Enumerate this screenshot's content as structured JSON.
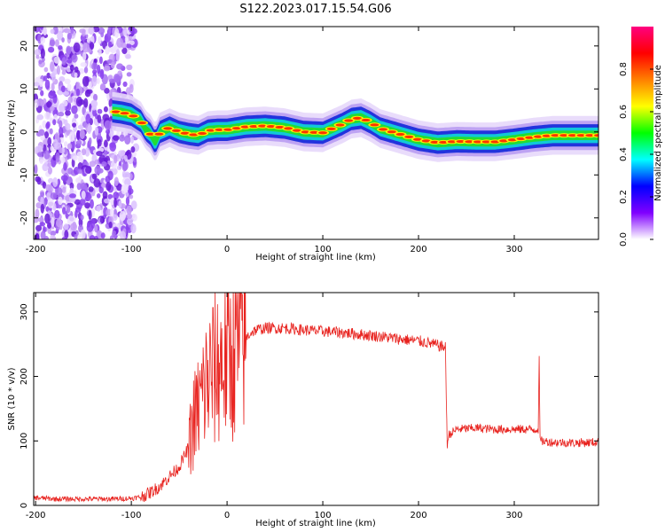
{
  "title": "S122.2023.017.15.54.G06",
  "chart_data": [
    {
      "type": "heatmap",
      "xlabel": "Height of straight line (km)",
      "ylabel": "Frequency (Hz)",
      "xlim": [
        -202,
        388
      ],
      "ylim": [
        -25,
        24.5
      ],
      "xticks": [
        -200,
        -100,
        0,
        100,
        200,
        300
      ],
      "yticks": [
        -20,
        -10,
        0,
        10,
        20
      ],
      "xtick_labels": [
        "-200",
        "-100",
        "0",
        "100",
        "200",
        "300"
      ],
      "ytick_labels": [
        "-20",
        "-10",
        "0",
        "10",
        "20"
      ],
      "noise_region": {
        "x_range": [
          -202,
          -100
        ],
        "y_range": [
          -25,
          24.5
        ]
      },
      "ridge": {
        "x": [
          -120,
          -110,
          -100,
          -90,
          -85,
          -80,
          -75,
          -70,
          -60,
          -50,
          -40,
          -30,
          -20,
          -10,
          0,
          20,
          40,
          60,
          80,
          100,
          110,
          120,
          130,
          140,
          150,
          160,
          180,
          200,
          220,
          240,
          260,
          280,
          300,
          320,
          340,
          360,
          388
        ],
        "y": [
          4.8,
          4.5,
          4,
          2.5,
          0.5,
          -0.5,
          -2.5,
          0,
          1,
          0,
          -0.5,
          -0.8,
          0.3,
          0.5,
          0.5,
          1.2,
          1.4,
          1,
          0,
          -0.2,
          0.8,
          1.8,
          3,
          3.3,
          2.2,
          0.8,
          -0.5,
          -1.8,
          -2.5,
          -2.2,
          -2.3,
          -2.3,
          -1.8,
          -1.2,
          -0.8,
          -0.8,
          -0.8
        ]
      },
      "colorbar": {
        "label": "Normalized spectral amplitude",
        "range": [
          0,
          1
        ],
        "ticks": [
          0,
          0.2,
          0.4,
          0.6,
          0.8
        ],
        "tick_labels": [
          "0.0",
          "0.2",
          "0.4",
          "0.6",
          "0.8"
        ],
        "colors": [
          "#ffffff",
          "#8000ff",
          "#0000ff",
          "#00ffff",
          "#00ff00",
          "#ffff00",
          "#ff8000",
          "#ff0000",
          "#ff0080"
        ]
      }
    },
    {
      "type": "line",
      "xlabel": "Height of straight line (km)",
      "ylabel": "SNR (10 * v/v)",
      "xlim": [
        -202,
        388
      ],
      "ylim": [
        0,
        330
      ],
      "xticks": [
        -200,
        -100,
        0,
        100,
        200,
        300
      ],
      "yticks": [
        0,
        100,
        200,
        300
      ],
      "xtick_labels": [
        "-200",
        "-100",
        "0",
        "100",
        "200",
        "300"
      ],
      "ytick_labels": [
        "0",
        "100",
        "200",
        "300"
      ],
      "color": "#e8231f",
      "series": [
        {
          "x": [
            -202,
            -180,
            -160,
            -140,
            -120,
            -100,
            -90,
            -80,
            -70,
            -60,
            -50,
            -40,
            -35,
            -30,
            -25,
            -20,
            -15,
            -10,
            -5,
            0,
            5,
            10,
            15,
            20,
            25,
            30,
            40,
            60,
            80,
            100,
            120,
            140,
            160,
            180,
            200,
            210,
            220,
            228,
            230,
            232,
            240,
            260,
            280,
            300,
            320,
            325,
            326,
            327,
            340,
            360,
            388
          ],
          "y": [
            12,
            10,
            10,
            10,
            10,
            11,
            13,
            20,
            30,
            45,
            60,
            90,
            130,
            150,
            175,
            195,
            205,
            215,
            225,
            225,
            235,
            245,
            255,
            260,
            268,
            272,
            275,
            275,
            272,
            270,
            268,
            265,
            262,
            258,
            255,
            252,
            248,
            245,
            95,
            110,
            118,
            120,
            118,
            118,
            118,
            118,
            225,
            100,
            98,
            97,
            98
          ]
        }
      ]
    }
  ]
}
